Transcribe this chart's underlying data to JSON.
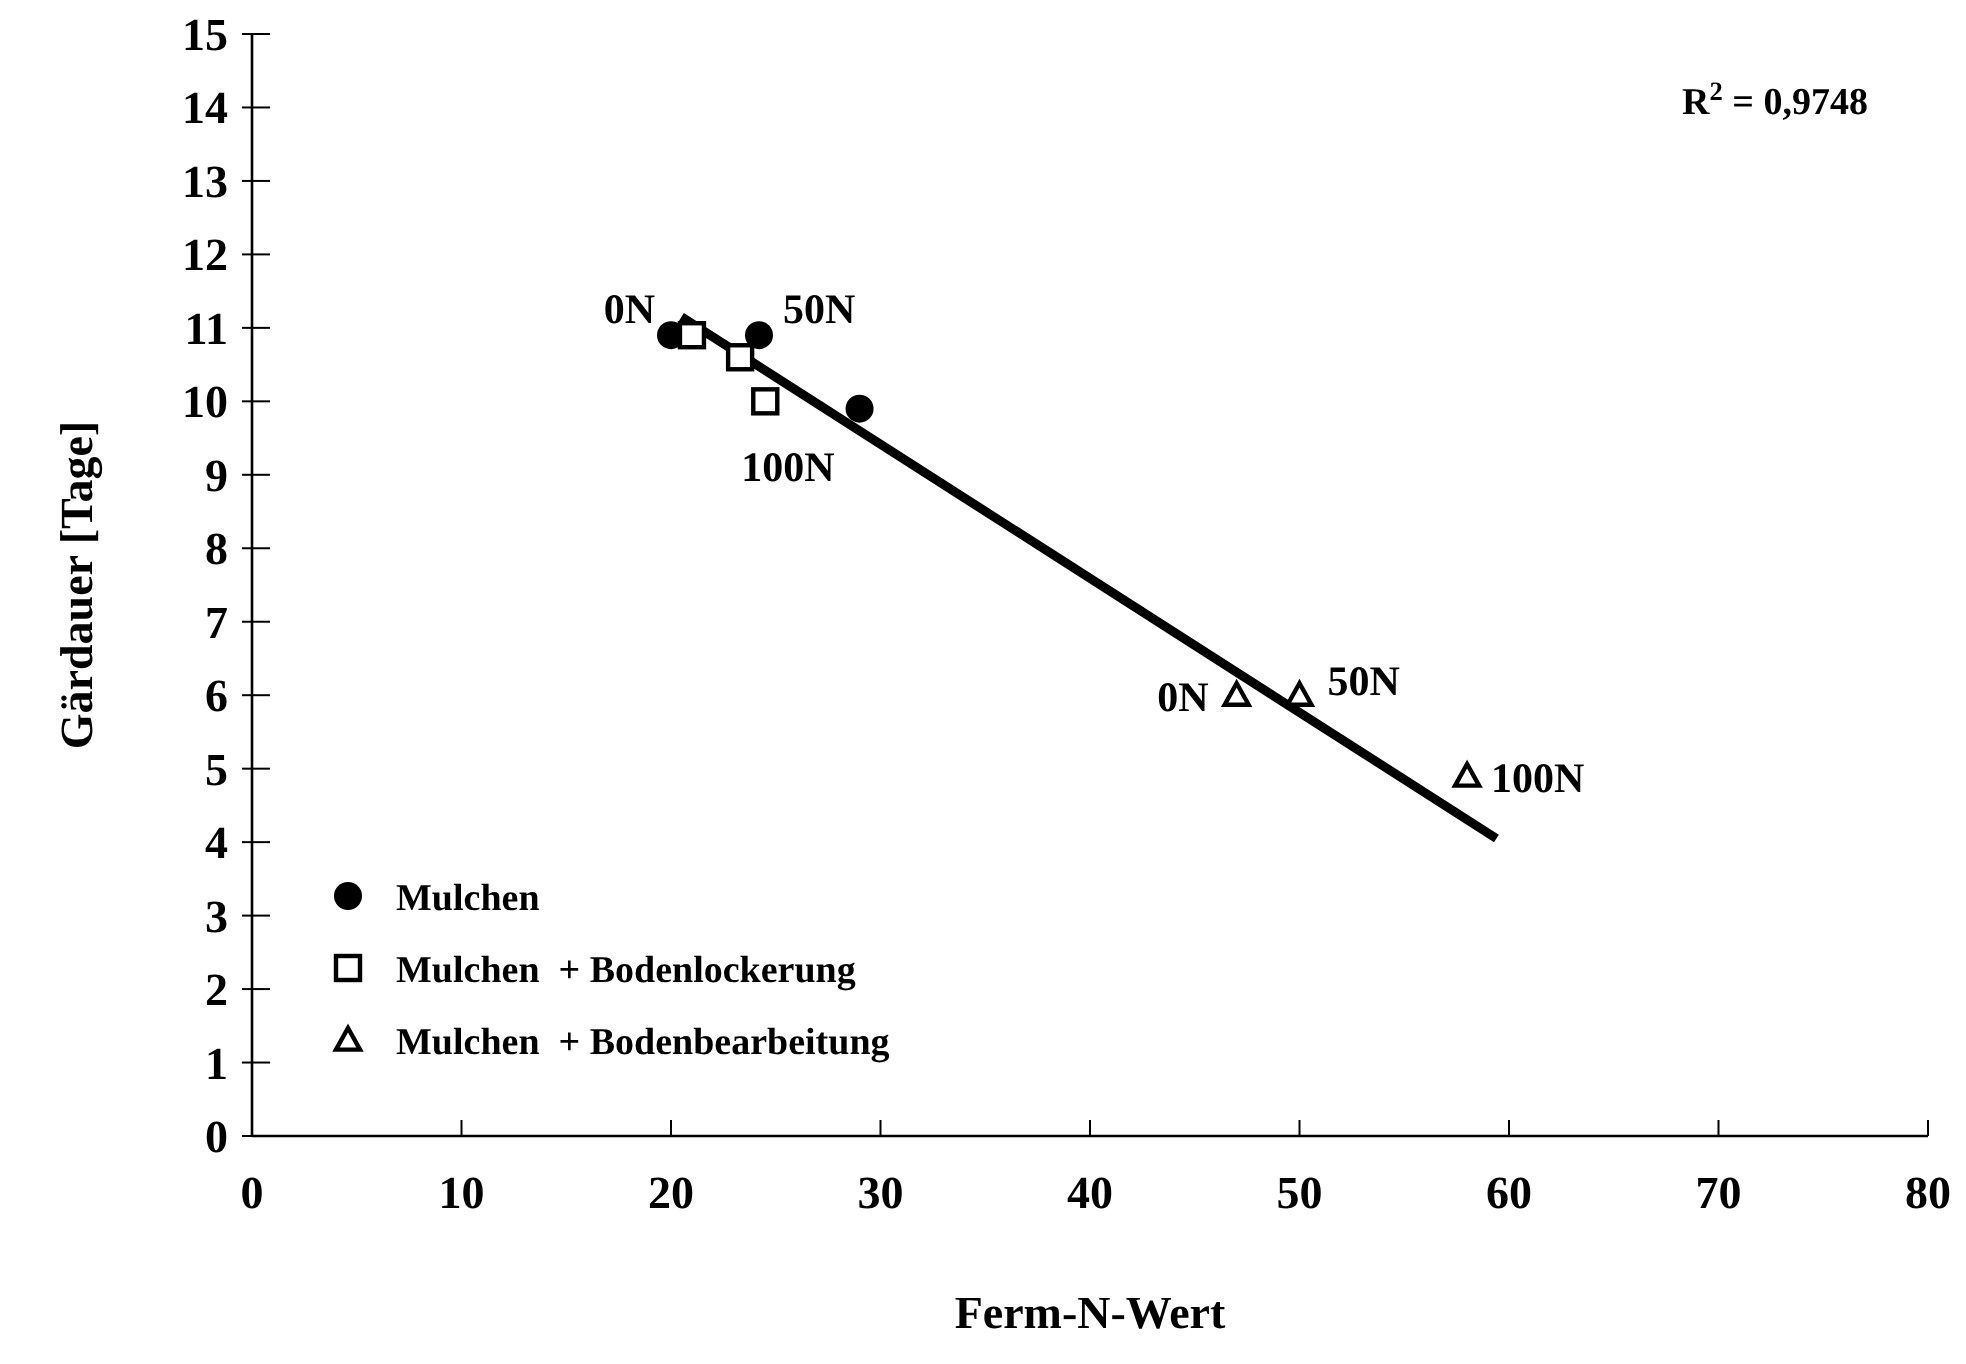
{
  "chart_data": {
    "type": "scatter",
    "xlabel": "Ferm-N-Wert",
    "ylabel": "Gärdauer [Tage]",
    "xlim": [
      0,
      80
    ],
    "xticks": [
      0,
      10,
      20,
      30,
      40,
      50,
      60,
      70,
      80
    ],
    "ylim": [
      0,
      15
    ],
    "yticks": [
      0,
      1,
      2,
      3,
      4,
      5,
      6,
      7,
      8,
      9,
      10,
      11,
      12,
      13,
      14,
      15
    ],
    "grid": false,
    "legend": "bottom left",
    "series": [
      {
        "name": "Mulchen",
        "color": "#000000",
        "marker": "circle",
        "x": [
          20,
          24.2,
          29
        ],
        "values": [
          10.9,
          10.9,
          9.9
        ]
      },
      {
        "name": "Mulchen  + Bodenlockerung",
        "color": "#000000",
        "marker": "square",
        "x": [
          21,
          23.3,
          24.5
        ],
        "values": [
          10.9,
          10.6,
          10
        ]
      },
      {
        "name": "Mulchen  + Bodenbearbeitung",
        "color": "#000000",
        "marker": "triangle",
        "x": [
          47,
          50,
          58
        ],
        "values": [
          6,
          6,
          4.9
        ]
      },
      {
        "type": "line",
        "color": "#000000",
        "marker": "none",
        "line_style": "solid",
        "x": [
          20.5,
          59.4
        ],
        "values": [
          11.15,
          4.05
        ]
      }
    ],
    "annotations": [
      {
        "text": "0N",
        "x": 20,
        "y": 10.9
      },
      {
        "text": "50N",
        "x": 24.2,
        "y": 10.9
      },
      {
        "text": "100N",
        "x": 24.5,
        "y": 9.9
      },
      {
        "text": "0N",
        "x": 47,
        "y": 6
      },
      {
        "text": "50N",
        "x": 50,
        "y": 6
      },
      {
        "text": "100N",
        "x": 58,
        "y": 4.9
      },
      "R$^{2}$ = 0,9748"
    ]
  }
}
